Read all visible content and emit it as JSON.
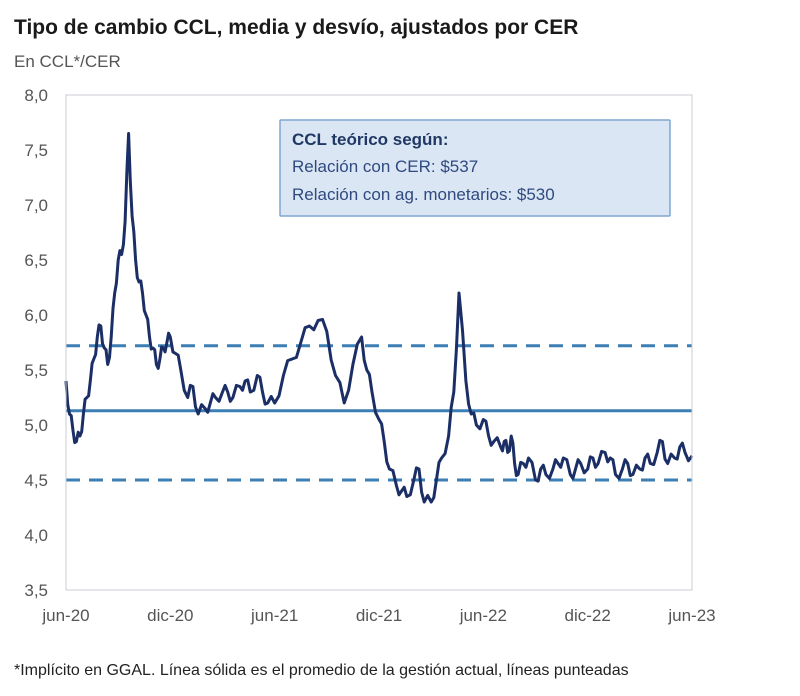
{
  "header": {
    "title": "Tipo de cambio CCL, media y desvío, ajustados por CER",
    "subtitle": "En CCL*/CER"
  },
  "footnote": "*Implícito en GGAL. Línea sólida es el promedio de la gestión actual, líneas punteadas",
  "colors": {
    "series": "#1b2f66",
    "mean": "#3c7fb5",
    "band": "#3c7fb5",
    "annotation_bg": "#dbe6f4",
    "annotation_border": "#7fa6cf"
  },
  "chart_data": {
    "type": "line",
    "title": "Tipo de cambio CCL, media y desvío, ajustados por CER",
    "ylabel": "En CCL*/CER",
    "ylim": [
      3.5,
      8.0
    ],
    "yticks": [
      "8,0",
      "7,5",
      "7,0",
      "6,5",
      "6,0",
      "5,5",
      "5,0",
      "4,5",
      "4,0",
      "3,5"
    ],
    "ytick_values": [
      8.0,
      7.5,
      7.0,
      6.5,
      6.0,
      5.5,
      5.0,
      4.5,
      4.0,
      3.5
    ],
    "xlim": [
      0,
      36
    ],
    "xticks": [
      "jun-20",
      "dic-20",
      "jun-21",
      "dic-21",
      "jun-22",
      "dic-22",
      "jun-23"
    ],
    "xtick_values": [
      0,
      6,
      12,
      18,
      24,
      30,
      36
    ],
    "mean": 5.13,
    "upper_band": 5.72,
    "lower_band": 4.5,
    "annotation": {
      "title": "CCL teórico según:",
      "lines": [
        "Relación con CER: $537",
        "Relación con ag. monetarios: $530"
      ]
    },
    "series": [
      {
        "name": "CCL/CER",
        "x": [
          0,
          0.2,
          0.4,
          0.6,
          0.8,
          1.0,
          1.2,
          1.4,
          1.6,
          1.8,
          2.0,
          2.2,
          2.4,
          2.6,
          2.8,
          3.0,
          3.2,
          3.4,
          3.6,
          3.8,
          4.0,
          4.2,
          4.4,
          4.6,
          4.8,
          5.0,
          5.2,
          5.4,
          5.6,
          5.8,
          6.0,
          6.3,
          6.6,
          7.0,
          7.3,
          7.6,
          8.0,
          8.3,
          8.6,
          9.0,
          9.3,
          9.6,
          10.0,
          10.3,
          10.6,
          11.0,
          11.3,
          11.6,
          12.0,
          12.5,
          13.0,
          13.5,
          14.0,
          14.5,
          15.0,
          15.5,
          16.0,
          16.5,
          17.0,
          17.3,
          17.6,
          18.0,
          18.3,
          18.6,
          19.0,
          19.3,
          19.6,
          20.0,
          20.3,
          20.6,
          21.0,
          21.3,
          21.6,
          22.0,
          22.3,
          22.6,
          23.0,
          23.3,
          23.6,
          24.0,
          24.3,
          24.6,
          25.0,
          25.2,
          25.4,
          25.6,
          25.8,
          26.0,
          26.3,
          26.6,
          27.0,
          27.3,
          27.6,
          28.0,
          28.3,
          28.6,
          29.0,
          29.3,
          29.6,
          30.0,
          30.3,
          30.6,
          31.0,
          31.3,
          31.6,
          32.0,
          32.3,
          32.6,
          33.0,
          33.3,
          33.6,
          34.0,
          34.3,
          34.6,
          35.0,
          35.3,
          35.6,
          36.0
        ],
        "values": [
          5.4,
          5.1,
          4.95,
          4.85,
          4.9,
          5.1,
          5.25,
          5.4,
          5.6,
          5.8,
          5.9,
          5.7,
          5.55,
          5.8,
          6.2,
          6.5,
          6.55,
          6.85,
          7.65,
          6.9,
          6.5,
          6.3,
          6.2,
          6.0,
          5.8,
          5.7,
          5.55,
          5.6,
          5.7,
          5.75,
          5.8,
          5.65,
          5.5,
          5.25,
          5.35,
          5.1,
          5.15,
          5.2,
          5.25,
          5.3,
          5.3,
          5.25,
          5.35,
          5.4,
          5.3,
          5.45,
          5.3,
          5.2,
          5.2,
          5.45,
          5.6,
          5.75,
          5.9,
          5.95,
          5.85,
          5.45,
          5.2,
          5.55,
          5.8,
          5.5,
          5.3,
          5.05,
          4.85,
          4.6,
          4.45,
          4.4,
          4.35,
          4.5,
          4.6,
          4.3,
          4.3,
          4.5,
          4.7,
          4.9,
          5.3,
          6.2,
          5.4,
          5.1,
          5.0,
          5.05,
          4.9,
          4.85,
          4.8,
          4.85,
          4.75,
          4.9,
          4.65,
          4.55,
          4.65,
          4.7,
          4.5,
          4.6,
          4.55,
          4.6,
          4.65,
          4.7,
          4.55,
          4.6,
          4.65,
          4.6,
          4.7,
          4.65,
          4.75,
          4.7,
          4.55,
          4.6,
          4.65,
          4.55,
          4.6,
          4.7,
          4.65,
          4.75,
          4.85,
          4.65,
          4.7,
          4.8,
          4.75,
          4.72
        ]
      }
    ]
  }
}
